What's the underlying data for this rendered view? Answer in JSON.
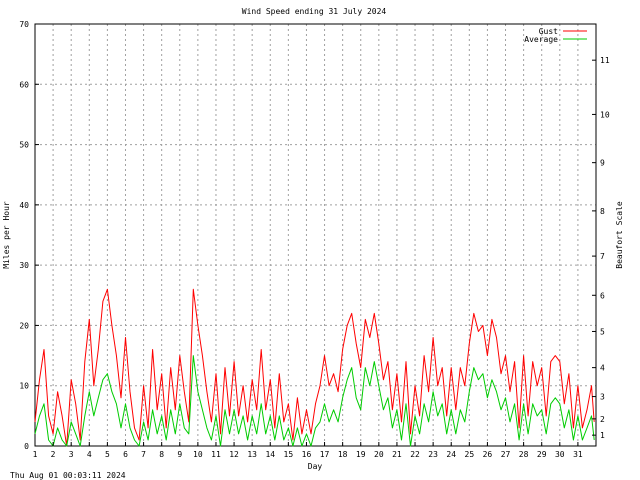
{
  "chart_data": {
    "type": "line",
    "title": "Wind Speed ending 31 July 2024",
    "xlabel": "Day",
    "ylabel": "Miles per Hour",
    "y2label": "Beaufort Scale",
    "footer": "Thu Aug 01 00:03:11 2024",
    "xlim": [
      1,
      32
    ],
    "ylim": [
      0,
      70
    ],
    "grid": true,
    "legend_position": "top-right",
    "x_ticks": [
      1,
      2,
      3,
      4,
      5,
      6,
      7,
      8,
      9,
      10,
      11,
      12,
      13,
      14,
      15,
      16,
      17,
      18,
      19,
      20,
      21,
      22,
      23,
      24,
      25,
      26,
      27,
      28,
      29,
      30,
      31
    ],
    "y_ticks": [
      0,
      10,
      20,
      30,
      40,
      50,
      60,
      70
    ],
    "beaufort_ticks": [
      {
        "label": "1",
        "mph": 1.8
      },
      {
        "label": "2",
        "mph": 4.5
      },
      {
        "label": "3",
        "mph": 8.2
      },
      {
        "label": "4",
        "mph": 13.0
      },
      {
        "label": "5",
        "mph": 19.0
      },
      {
        "label": "6",
        "mph": 25.0
      },
      {
        "label": "7",
        "mph": 31.5
      },
      {
        "label": "8",
        "mph": 39.0
      },
      {
        "label": "9",
        "mph": 47.0
      },
      {
        "label": "10",
        "mph": 55.0
      },
      {
        "label": "11",
        "mph": 64.0
      }
    ],
    "series": [
      {
        "name": "Gust",
        "color": "#ff0000",
        "points": [
          [
            1.0,
            4
          ],
          [
            1.25,
            11
          ],
          [
            1.5,
            16
          ],
          [
            1.75,
            5
          ],
          [
            2.0,
            2
          ],
          [
            2.25,
            9
          ],
          [
            2.5,
            5
          ],
          [
            2.75,
            0
          ],
          [
            3.0,
            11
          ],
          [
            3.25,
            7
          ],
          [
            3.5,
            1
          ],
          [
            3.75,
            14
          ],
          [
            4.0,
            21
          ],
          [
            4.25,
            10
          ],
          [
            4.5,
            16
          ],
          [
            4.75,
            24
          ],
          [
            5.0,
            26
          ],
          [
            5.25,
            20
          ],
          [
            5.5,
            15
          ],
          [
            5.75,
            8
          ],
          [
            6.0,
            18
          ],
          [
            6.25,
            9
          ],
          [
            6.5,
            3
          ],
          [
            6.75,
            1
          ],
          [
            7.0,
            10
          ],
          [
            7.25,
            3
          ],
          [
            7.5,
            16
          ],
          [
            7.75,
            6
          ],
          [
            8.0,
            12
          ],
          [
            8.25,
            3
          ],
          [
            8.5,
            13
          ],
          [
            8.75,
            6
          ],
          [
            9.0,
            15
          ],
          [
            9.25,
            9
          ],
          [
            9.5,
            4
          ],
          [
            9.75,
            26
          ],
          [
            10.0,
            20
          ],
          [
            10.25,
            15
          ],
          [
            10.5,
            9
          ],
          [
            10.75,
            4
          ],
          [
            11.0,
            12
          ],
          [
            11.25,
            2
          ],
          [
            11.5,
            13
          ],
          [
            11.75,
            5
          ],
          [
            12.0,
            14
          ],
          [
            12.25,
            5
          ],
          [
            12.5,
            10
          ],
          [
            12.75,
            4
          ],
          [
            13.0,
            11
          ],
          [
            13.25,
            6
          ],
          [
            13.5,
            16
          ],
          [
            13.75,
            6
          ],
          [
            14.0,
            11
          ],
          [
            14.25,
            3
          ],
          [
            14.5,
            12
          ],
          [
            14.75,
            4
          ],
          [
            15.0,
            7
          ],
          [
            15.25,
            1
          ],
          [
            15.5,
            8
          ],
          [
            15.75,
            2
          ],
          [
            16.0,
            6
          ],
          [
            16.25,
            2
          ],
          [
            16.5,
            7
          ],
          [
            16.75,
            10
          ],
          [
            17.0,
            15
          ],
          [
            17.25,
            10
          ],
          [
            17.5,
            12
          ],
          [
            17.75,
            9
          ],
          [
            18.0,
            16
          ],
          [
            18.25,
            20
          ],
          [
            18.5,
            22
          ],
          [
            18.75,
            17
          ],
          [
            19.0,
            13
          ],
          [
            19.25,
            21
          ],
          [
            19.5,
            18
          ],
          [
            19.75,
            22
          ],
          [
            20.0,
            17
          ],
          [
            20.25,
            11
          ],
          [
            20.5,
            14
          ],
          [
            20.75,
            6
          ],
          [
            21.0,
            12
          ],
          [
            21.25,
            4
          ],
          [
            21.5,
            14
          ],
          [
            21.75,
            2
          ],
          [
            22.0,
            10
          ],
          [
            22.25,
            5
          ],
          [
            22.5,
            15
          ],
          [
            22.75,
            9
          ],
          [
            23.0,
            18
          ],
          [
            23.25,
            10
          ],
          [
            23.5,
            13
          ],
          [
            23.75,
            5
          ],
          [
            24.0,
            13
          ],
          [
            24.25,
            6
          ],
          [
            24.5,
            13
          ],
          [
            24.75,
            10
          ],
          [
            25.0,
            17
          ],
          [
            25.25,
            22
          ],
          [
            25.5,
            19
          ],
          [
            25.75,
            20
          ],
          [
            26.0,
            15
          ],
          [
            26.25,
            21
          ],
          [
            26.5,
            18
          ],
          [
            26.75,
            12
          ],
          [
            27.0,
            15
          ],
          [
            27.25,
            9
          ],
          [
            27.5,
            14
          ],
          [
            27.75,
            3
          ],
          [
            28.0,
            15
          ],
          [
            28.25,
            5
          ],
          [
            28.5,
            14
          ],
          [
            28.75,
            10
          ],
          [
            29.0,
            13
          ],
          [
            29.25,
            5
          ],
          [
            29.5,
            14
          ],
          [
            29.75,
            15
          ],
          [
            30.0,
            14
          ],
          [
            30.25,
            7
          ],
          [
            30.5,
            12
          ],
          [
            30.75,
            3
          ],
          [
            31.0,
            10
          ],
          [
            31.25,
            3
          ],
          [
            31.5,
            6
          ],
          [
            31.75,
            10
          ],
          [
            31.9,
            4
          ]
        ]
      },
      {
        "name": "Average",
        "color": "#00cc00",
        "points": [
          [
            1.0,
            2
          ],
          [
            1.25,
            5
          ],
          [
            1.5,
            7
          ],
          [
            1.75,
            1
          ],
          [
            2.0,
            0
          ],
          [
            2.25,
            3
          ],
          [
            2.5,
            1
          ],
          [
            2.75,
            0
          ],
          [
            3.0,
            4
          ],
          [
            3.25,
            2
          ],
          [
            3.5,
            0
          ],
          [
            3.75,
            5
          ],
          [
            4.0,
            9
          ],
          [
            4.25,
            5
          ],
          [
            4.5,
            8
          ],
          [
            4.75,
            11
          ],
          [
            5.0,
            12
          ],
          [
            5.25,
            9
          ],
          [
            5.5,
            7
          ],
          [
            5.75,
            3
          ],
          [
            6.0,
            7
          ],
          [
            6.25,
            3
          ],
          [
            6.5,
            1
          ],
          [
            6.75,
            0
          ],
          [
            7.0,
            4
          ],
          [
            7.25,
            1
          ],
          [
            7.5,
            6
          ],
          [
            7.75,
            2
          ],
          [
            8.0,
            5
          ],
          [
            8.25,
            1
          ],
          [
            8.5,
            6
          ],
          [
            8.75,
            2
          ],
          [
            9.0,
            7
          ],
          [
            9.25,
            3
          ],
          [
            9.5,
            2
          ],
          [
            9.75,
            15
          ],
          [
            10.0,
            9
          ],
          [
            10.25,
            6
          ],
          [
            10.5,
            3
          ],
          [
            10.75,
            1
          ],
          [
            11.0,
            5
          ],
          [
            11.25,
            0
          ],
          [
            11.5,
            6
          ],
          [
            11.75,
            2
          ],
          [
            12.0,
            6
          ],
          [
            12.25,
            2
          ],
          [
            12.5,
            5
          ],
          [
            12.75,
            1
          ],
          [
            13.0,
            5
          ],
          [
            13.25,
            2
          ],
          [
            13.5,
            7
          ],
          [
            13.75,
            2
          ],
          [
            14.0,
            5
          ],
          [
            14.25,
            1
          ],
          [
            14.5,
            5
          ],
          [
            14.75,
            1
          ],
          [
            15.0,
            3
          ],
          [
            15.25,
            0
          ],
          [
            15.5,
            3
          ],
          [
            15.75,
            0
          ],
          [
            16.0,
            2
          ],
          [
            16.25,
            0
          ],
          [
            16.5,
            3
          ],
          [
            16.75,
            4
          ],
          [
            17.0,
            7
          ],
          [
            17.25,
            4
          ],
          [
            17.5,
            6
          ],
          [
            17.75,
            4
          ],
          [
            18.0,
            8
          ],
          [
            18.25,
            11
          ],
          [
            18.5,
            13
          ],
          [
            18.75,
            8
          ],
          [
            19.0,
            6
          ],
          [
            19.25,
            13
          ],
          [
            19.5,
            10
          ],
          [
            19.75,
            14
          ],
          [
            20.0,
            10
          ],
          [
            20.25,
            6
          ],
          [
            20.5,
            8
          ],
          [
            20.75,
            3
          ],
          [
            21.0,
            6
          ],
          [
            21.25,
            1
          ],
          [
            21.5,
            7
          ],
          [
            21.75,
            0
          ],
          [
            22.0,
            5
          ],
          [
            22.25,
            2
          ],
          [
            22.5,
            7
          ],
          [
            22.75,
            4
          ],
          [
            23.0,
            9
          ],
          [
            23.25,
            5
          ],
          [
            23.5,
            7
          ],
          [
            23.75,
            2
          ],
          [
            24.0,
            6
          ],
          [
            24.25,
            2
          ],
          [
            24.5,
            6
          ],
          [
            24.75,
            4
          ],
          [
            25.0,
            9
          ],
          [
            25.25,
            13
          ],
          [
            25.5,
            11
          ],
          [
            25.75,
            12
          ],
          [
            26.0,
            8
          ],
          [
            26.25,
            11
          ],
          [
            26.5,
            9
          ],
          [
            26.75,
            6
          ],
          [
            27.0,
            8
          ],
          [
            27.25,
            4
          ],
          [
            27.5,
            7
          ],
          [
            27.75,
            1
          ],
          [
            28.0,
            7
          ],
          [
            28.25,
            2
          ],
          [
            28.5,
            7
          ],
          [
            28.75,
            5
          ],
          [
            29.0,
            6
          ],
          [
            29.25,
            2
          ],
          [
            29.5,
            7
          ],
          [
            29.75,
            8
          ],
          [
            30.0,
            7
          ],
          [
            30.25,
            3
          ],
          [
            30.5,
            6
          ],
          [
            30.75,
            1
          ],
          [
            31.0,
            5
          ],
          [
            31.25,
            1
          ],
          [
            31.5,
            3
          ],
          [
            31.75,
            5
          ],
          [
            31.9,
            1
          ]
        ]
      }
    ]
  }
}
